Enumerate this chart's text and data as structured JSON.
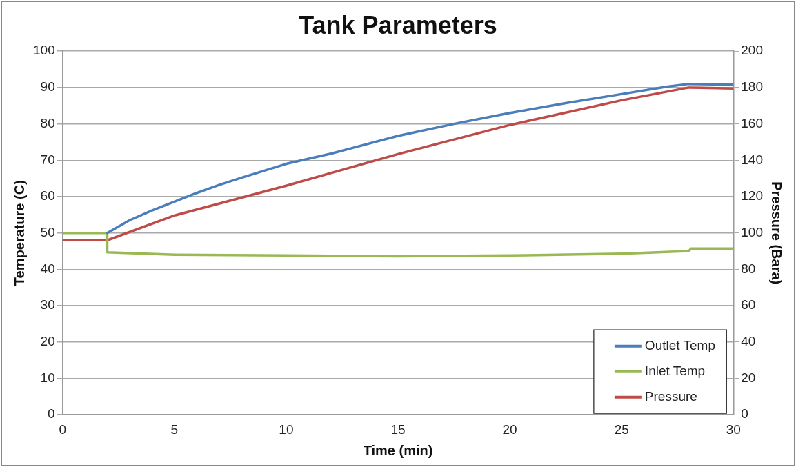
{
  "chart_data": {
    "type": "line",
    "title": "Tank Parameters",
    "xlabel": "Time (min)",
    "ylabel": "Temperature (C)",
    "y2label": "Pressure (Bara)",
    "xlim": [
      0,
      30
    ],
    "xticks": [
      0,
      5,
      10,
      15,
      20,
      25,
      30
    ],
    "ylim": [
      0,
      100
    ],
    "yticks": [
      0,
      10,
      20,
      30,
      40,
      50,
      60,
      70,
      80,
      90,
      100
    ],
    "y2lim": [
      0,
      200
    ],
    "y2ticks": [
      0,
      20,
      40,
      60,
      80,
      100,
      120,
      140,
      160,
      180,
      200
    ],
    "grid": "y",
    "legend": "bottom right",
    "marker": "none",
    "line_style": "solid",
    "series": [
      {
        "name": "Outlet Temp",
        "color": "#4a7ebb",
        "x": [
          2,
          3,
          4,
          5,
          6,
          7,
          8,
          10,
          12,
          15,
          17.5,
          20,
          22.5,
          25,
          27,
          28,
          30
        ],
        "values": [
          50,
          53.5,
          56.2,
          58.6,
          61,
          63.2,
          65.2,
          69,
          71.8,
          76.7,
          80,
          83,
          85.7,
          88.2,
          90.2,
          91,
          90.8
        ]
      },
      {
        "name": "Inlet Temp",
        "color": "#98b954",
        "x": [
          0,
          2,
          2,
          5,
          10,
          15,
          20,
          25,
          28,
          28.1,
          30
        ],
        "values": [
          50,
          50,
          44.7,
          44,
          43.8,
          43.6,
          43.8,
          44.3,
          45,
          45.7,
          45.7
        ]
      },
      {
        "name": "Pressure",
        "color": "#be4b48",
        "axis": "y2",
        "x": [
          0,
          2,
          5,
          10,
          15,
          20,
          25,
          28,
          30
        ],
        "values": [
          96,
          96,
          109.6,
          126,
          143.4,
          159.4,
          173,
          180,
          179.5
        ]
      }
    ]
  }
}
